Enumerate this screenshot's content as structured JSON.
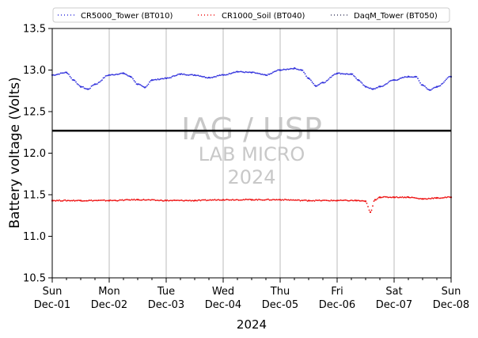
{
  "chart_data": {
    "type": "scatter",
    "ylabel": "Battery voltage (Volts)",
    "xlabel": "2024",
    "ylim": [
      10.5,
      13.5
    ],
    "xlim": [
      "2024-12-01",
      "2024-12-08"
    ],
    "y_ticks": [
      "10.5",
      "11.0",
      "11.5",
      "12.0",
      "12.5",
      "13.0",
      "13.5"
    ],
    "x_ticks": [
      {
        "day": "Sun",
        "date": "Dec-01"
      },
      {
        "day": "Mon",
        "date": "Dec-02"
      },
      {
        "day": "Tue",
        "date": "Dec-03"
      },
      {
        "day": "Wed",
        "date": "Dec-04"
      },
      {
        "day": "Thu",
        "date": "Dec-05"
      },
      {
        "day": "Fri",
        "date": "Dec-06"
      },
      {
        "day": "Sat",
        "date": "Dec-07"
      },
      {
        "day": "Sun",
        "date": "Dec-08"
      }
    ],
    "grid": "vertical",
    "legend_position": "top",
    "reference_line": {
      "y": 12.27,
      "color": "#000000"
    },
    "watermark": [
      "IAG / USP",
      "LAB MICRO",
      "2024"
    ],
    "series": [
      {
        "name": "CR5000_Tower (BT010)",
        "color": "#3333dd",
        "x": [
          "2024-12-01 00:00",
          "2024-12-01 06:00",
          "2024-12-01 09:00",
          "2024-12-01 12:00",
          "2024-12-01 15:00",
          "2024-12-01 18:00",
          "2024-12-02 00:00",
          "2024-12-02 06:00",
          "2024-12-02 09:00",
          "2024-12-02 12:00",
          "2024-12-02 15:00",
          "2024-12-02 18:00",
          "2024-12-03 00:00",
          "2024-12-03 06:00",
          "2024-12-03 12:00",
          "2024-12-03 18:00",
          "2024-12-04 00:00",
          "2024-12-04 06:00",
          "2024-12-04 12:00",
          "2024-12-04 18:00",
          "2024-12-05 00:00",
          "2024-12-05 06:00",
          "2024-12-05 09:00",
          "2024-12-05 12:00",
          "2024-12-05 15:00",
          "2024-12-05 18:00",
          "2024-12-06 00:00",
          "2024-12-06 06:00",
          "2024-12-06 09:00",
          "2024-12-06 12:00",
          "2024-12-06 15:00",
          "2024-12-06 18:00",
          "2024-12-07 00:00",
          "2024-12-07 06:00",
          "2024-12-07 09:00",
          "2024-12-07 12:00",
          "2024-12-07 15:00",
          "2024-12-07 18:00",
          "2024-12-08 00:00"
        ],
        "y": [
          12.94,
          12.97,
          12.88,
          12.8,
          12.77,
          12.83,
          12.94,
          12.96,
          12.92,
          12.83,
          12.79,
          12.88,
          12.9,
          12.95,
          12.94,
          12.91,
          12.94,
          12.98,
          12.97,
          12.94,
          13.0,
          13.02,
          13.0,
          12.9,
          12.81,
          12.85,
          12.96,
          12.95,
          12.88,
          12.8,
          12.77,
          12.8,
          12.88,
          12.92,
          12.92,
          12.82,
          12.76,
          12.8,
          12.92
        ]
      },
      {
        "name": "CR1000_Soil (BT040)",
        "color": "#ee1111",
        "x": [
          "2024-12-01 00:00",
          "2024-12-01 12:00",
          "2024-12-02 00:00",
          "2024-12-02 12:00",
          "2024-12-03 00:00",
          "2024-12-03 12:00",
          "2024-12-04 00:00",
          "2024-12-04 12:00",
          "2024-12-05 00:00",
          "2024-12-05 12:00",
          "2024-12-06 00:00",
          "2024-12-06 08:00",
          "2024-12-06 12:00",
          "2024-12-06 14:00",
          "2024-12-06 16:00",
          "2024-12-06 18:00",
          "2024-12-07 00:00",
          "2024-12-07 06:00",
          "2024-12-07 12:00",
          "2024-12-07 18:00",
          "2024-12-08 00:00"
        ],
        "y": [
          11.43,
          11.43,
          11.43,
          11.44,
          11.43,
          11.43,
          11.44,
          11.44,
          11.44,
          11.43,
          11.43,
          11.43,
          11.42,
          11.29,
          11.44,
          11.47,
          11.47,
          11.47,
          11.45,
          11.46,
          11.47
        ]
      },
      {
        "name": "DaqM_Tower (BT050)",
        "color": "#444466",
        "x": [],
        "y": []
      }
    ]
  }
}
